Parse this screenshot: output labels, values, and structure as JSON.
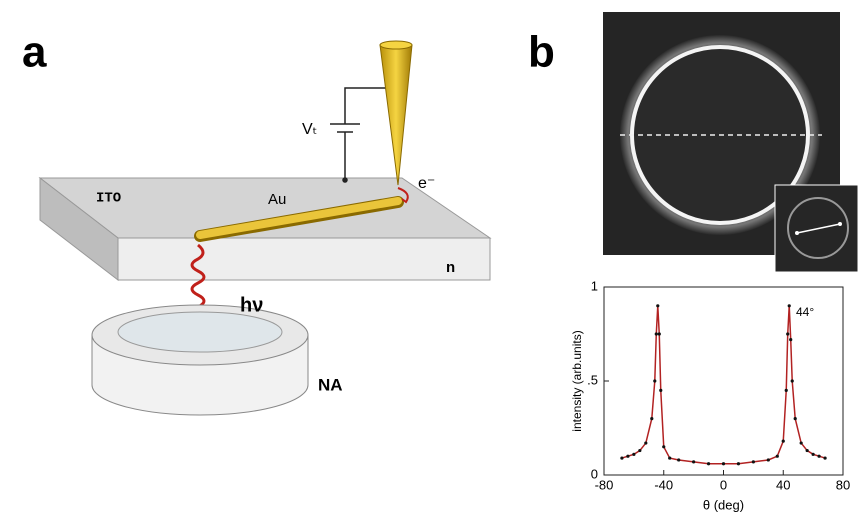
{
  "panel_a": {
    "label": "a",
    "labels": {
      "ito": "ITO",
      "au": "Au",
      "n": "n",
      "electron": "e⁻",
      "voltage": "Vₜ",
      "photon": "hν",
      "aperture": "NA"
    }
  },
  "panel_b": {
    "label": "b"
  },
  "chart_data": {
    "type": "line",
    "xlabel": "θ (deg)",
    "ylabel": "intensity (arb.units)",
    "annotation": "44°",
    "x": [
      -68,
      -64,
      -60,
      -56,
      -52,
      -48,
      -46,
      -45,
      -44,
      -43,
      -42,
      -40,
      -36,
      -30,
      -20,
      -10,
      0,
      10,
      20,
      30,
      36,
      40,
      42,
      43,
      44,
      45,
      46,
      48,
      52,
      56,
      60,
      64,
      68
    ],
    "values": [
      0.09,
      0.1,
      0.11,
      0.13,
      0.17,
      0.3,
      0.5,
      0.75,
      0.9,
      0.75,
      0.45,
      0.15,
      0.09,
      0.08,
      0.07,
      0.06,
      0.06,
      0.06,
      0.07,
      0.08,
      0.1,
      0.18,
      0.45,
      0.75,
      0.9,
      0.72,
      0.5,
      0.3,
      0.17,
      0.13,
      0.11,
      0.1,
      0.09
    ],
    "color": "#b22222",
    "marker_color": "#111111",
    "xlim": [
      -80,
      80
    ],
    "xticks": [
      -80,
      -40,
      0,
      40,
      80
    ],
    "ylim": [
      0,
      1
    ],
    "yticks": [
      0,
      {
        "value": 0.5,
        "label": ".5"
      },
      1
    ]
  }
}
